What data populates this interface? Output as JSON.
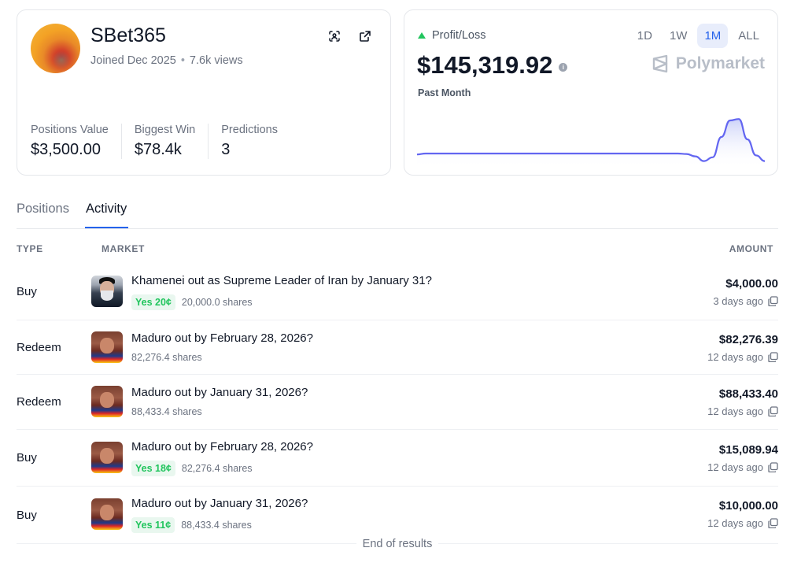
{
  "profile": {
    "username": "SBet365",
    "joined": "Joined Dec 2025",
    "views": "7.6k views",
    "stats": [
      {
        "label": "Positions Value",
        "value": "$3,500.00"
      },
      {
        "label": "Biggest Win",
        "value": "$78.4k"
      },
      {
        "label": "Predictions",
        "value": "3"
      }
    ]
  },
  "pnl": {
    "label": "Profit/Loss",
    "value": "$145,319.92",
    "period": "Past Month",
    "brand": "Polymarket",
    "ranges": [
      "1D",
      "1W",
      "1M",
      "ALL"
    ],
    "active_range": "1M",
    "series": [
      0.18,
      0.2,
      0.2,
      0.2,
      0.2,
      0.2,
      0.2,
      0.2,
      0.2,
      0.2,
      0.2,
      0.2,
      0.2,
      0.2,
      0.2,
      0.2,
      0.2,
      0.2,
      0.2,
      0.2,
      0.2,
      0.2,
      0.2,
      0.2,
      0.2,
      0.2,
      0.2,
      0.2,
      0.2,
      0.2,
      0.2,
      0.19,
      0.14,
      0.04,
      0.12,
      0.55,
      0.9,
      0.93,
      0.5,
      0.16,
      0.04
    ],
    "colors": {
      "line": "#6366f1",
      "fill": "#e0e3fb",
      "up": "#22c55e",
      "active_bg": "#e8edfb",
      "active_text": "#2563eb"
    }
  },
  "tabs": [
    {
      "label": "Positions",
      "active": false
    },
    {
      "label": "Activity",
      "active": true
    }
  ],
  "columns": {
    "type": "TYPE",
    "market": "MARKET",
    "amount": "AMOUNT"
  },
  "activity": [
    {
      "type": "Buy",
      "thumb": "khamenei",
      "title": "Khamenei out as Supreme Leader of Iran by January 31?",
      "outcome": "Yes 20¢",
      "shares": "20,000.0 shares",
      "amount": "$4,000.00",
      "time": "3 days ago"
    },
    {
      "type": "Redeem",
      "thumb": "maduro",
      "title": "Maduro out by February 28, 2026?",
      "outcome": "",
      "shares": "82,276.4 shares",
      "amount": "$82,276.39",
      "time": "12 days ago"
    },
    {
      "type": "Redeem",
      "thumb": "maduro",
      "title": "Maduro out by January 31, 2026?",
      "outcome": "",
      "shares": "88,433.4 shares",
      "amount": "$88,433.40",
      "time": "12 days ago"
    },
    {
      "type": "Buy",
      "thumb": "maduro",
      "title": "Maduro out by February 28, 2026?",
      "outcome": "Yes 18¢",
      "shares": "82,276.4 shares",
      "amount": "$15,089.94",
      "time": "12 days ago"
    },
    {
      "type": "Buy",
      "thumb": "maduro",
      "title": "Maduro out by January 31, 2026?",
      "outcome": "Yes 11¢",
      "shares": "88,433.4 shares",
      "amount": "$10,000.00",
      "time": "12 days ago"
    }
  ],
  "footer": "End of results",
  "icons": {
    "scan": "scan-face-icon",
    "external": "external-link-icon",
    "open": "open-new-icon",
    "info": "info-icon"
  }
}
